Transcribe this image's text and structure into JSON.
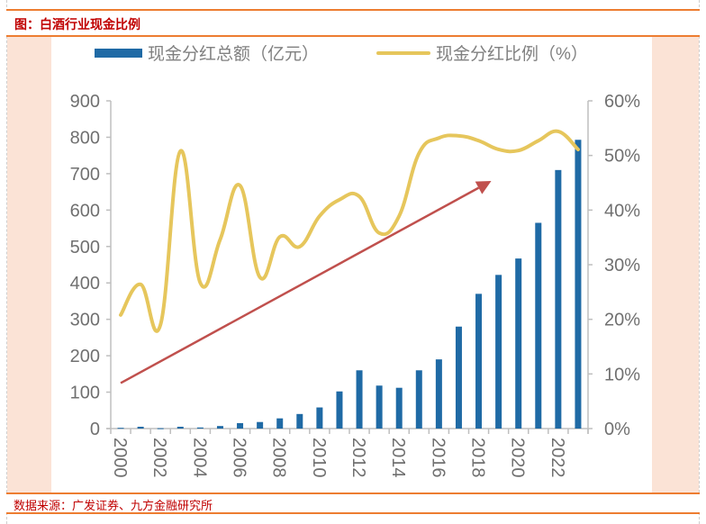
{
  "header": {
    "title": "图：白酒行业现金比例"
  },
  "footer": {
    "source": "数据来源：广发证券、九方金融研究所"
  },
  "colors": {
    "bar": "#1f6aa5",
    "line": "#e6c65c",
    "arrow": "#c0504d",
    "axis": "#bfbfbf",
    "tick_text": "#707070",
    "title": "#c00000",
    "accent": "#ed7d31",
    "side_panel": "#fbe3d6"
  },
  "chart_data": {
    "type": "bar+line",
    "title": "白酒行业现金比例",
    "categories": [
      "2000",
      "2001",
      "2002",
      "2003",
      "2004",
      "2005",
      "2006",
      "2007",
      "2008",
      "2009",
      "2010",
      "2011",
      "2012",
      "2013",
      "2014",
      "2015",
      "2016",
      "2017",
      "2018",
      "2019",
      "2020",
      "2021",
      "2022",
      "2023"
    ],
    "x_tick_labels": [
      "2000",
      "2002",
      "2004",
      "2006",
      "2008",
      "2010",
      "2012",
      "2014",
      "2016",
      "2018",
      "2020",
      "2022"
    ],
    "series": [
      {
        "name": "现金分红总额（亿元）",
        "type": "bar",
        "axis": "left",
        "values": [
          2,
          5,
          1,
          5,
          3,
          7,
          15,
          18,
          28,
          40,
          58,
          102,
          160,
          118,
          112,
          160,
          190,
          280,
          370,
          422,
          467,
          565,
          710,
          793
        ]
      },
      {
        "name": "现金分红比例（%）",
        "type": "line",
        "axis": "right",
        "values": [
          20.8,
          26.4,
          19.0,
          50.8,
          26.7,
          34.6,
          44.5,
          27.7,
          35.1,
          33.3,
          38.9,
          41.9,
          42.5,
          35.8,
          38.9,
          50.4,
          53.2,
          53.6,
          52.7,
          51.1,
          50.9,
          52.7,
          54.4,
          51.1
        ]
      }
    ],
    "y_left": {
      "min": 0,
      "max": 900,
      "ticks": [
        "0",
        "100",
        "200",
        "300",
        "400",
        "500",
        "600",
        "700",
        "800",
        "900"
      ]
    },
    "y_right": {
      "min": 0,
      "max": 60,
      "ticks": [
        "0%",
        "10%",
        "20%",
        "30%",
        "40%",
        "50%",
        "60%"
      ]
    },
    "annotation": {
      "type": "trend-arrow",
      "from_category": "2000",
      "to_category": "2018",
      "from_left_value": 125,
      "to_left_value": 680,
      "meaning": "upward trend"
    },
    "legend": {
      "placement": "top",
      "entries": [
        "现金分红总额（亿元）",
        "现金分红比例（%）"
      ]
    },
    "grid": false
  }
}
